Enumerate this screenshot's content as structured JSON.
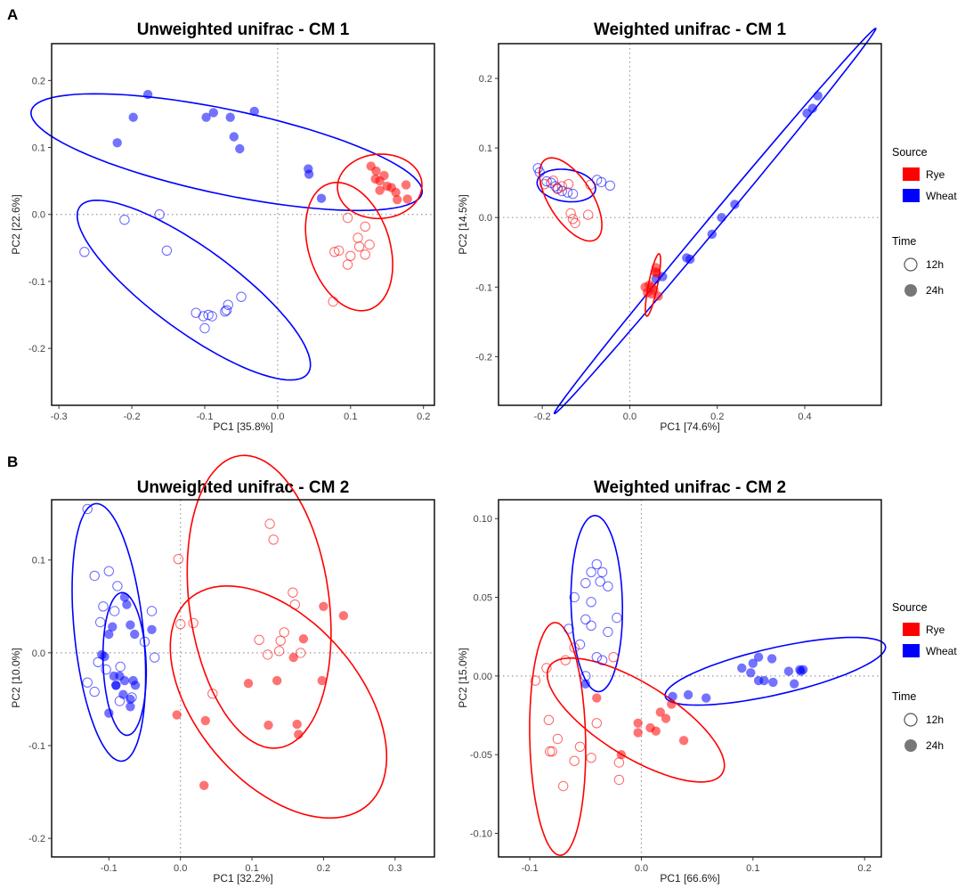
{
  "panel_labels": [
    "A",
    "B"
  ],
  "colors": {
    "rye": "#ff0000",
    "wheat": "#0000ff",
    "zero_line": "#999999"
  },
  "legend": {
    "source_title": "Source",
    "source_items": [
      "Rye",
      "Wheat"
    ],
    "time_title": "Time",
    "time_items": [
      "12h",
      "24h"
    ]
  },
  "chart_data": [
    {
      "type": "scatter",
      "title": "Unweighted unifrac - CM 1",
      "xlabel": "PC1 [35.8%]",
      "ylabel": "PC2 [22.6%]",
      "xlim": [
        -0.31,
        0.215
      ],
      "ylim": [
        -0.285,
        0.255
      ],
      "xticks": [
        -0.3,
        -0.2,
        -0.1,
        0.0,
        0.1,
        0.2
      ],
      "xtick_labels": [
        "-0.3",
        "-0.2",
        "-0.1",
        "0.0",
        "0.1",
        "0.2"
      ],
      "yticks": [
        -0.2,
        -0.1,
        0.0,
        0.1,
        0.2
      ],
      "ytick_labels": [
        "-0.2",
        "-0.1",
        "0.0",
        "0.1",
        "0.2"
      ],
      "ellipses": [
        {
          "source": "Wheat",
          "cx": -0.07,
          "cy": 0.093,
          "rx": 0.275,
          "ry": 0.063,
          "angle_deg": -13
        },
        {
          "source": "Wheat",
          "cx": -0.115,
          "cy": -0.113,
          "rx": 0.2,
          "ry": 0.06,
          "angle_deg": -39
        },
        {
          "source": "Rye",
          "cx": 0.14,
          "cy": 0.042,
          "rx": 0.058,
          "ry": 0.048,
          "angle_deg": 5
        },
        {
          "source": "Rye",
          "cx": 0.098,
          "cy": -0.048,
          "rx": 0.056,
          "ry": 0.098,
          "angle_deg": 15
        }
      ],
      "series": [
        {
          "name": "Wheat 24h",
          "source": "Wheat",
          "time": "24h",
          "x": [
            -0.22,
            -0.198,
            -0.178,
            -0.098,
            -0.088,
            -0.065,
            -0.06,
            -0.052,
            -0.032,
            0.042,
            0.043,
            0.06
          ],
          "y": [
            0.107,
            0.145,
            0.179,
            0.145,
            0.152,
            0.145,
            0.116,
            0.098,
            0.154,
            0.068,
            0.06,
            0.024
          ]
        },
        {
          "name": "Wheat 12h",
          "source": "Wheat",
          "time": "12h",
          "x": [
            -0.265,
            -0.21,
            -0.162,
            -0.152,
            -0.112,
            -0.102,
            -0.1,
            -0.095,
            -0.09,
            -0.072,
            -0.07,
            -0.068,
            -0.05
          ],
          "y": [
            -0.056,
            -0.008,
            0.0,
            -0.054,
            -0.147,
            -0.152,
            -0.17,
            -0.15,
            -0.152,
            -0.145,
            -0.143,
            -0.135,
            -0.123
          ]
        },
        {
          "name": "Rye 24h",
          "source": "Rye",
          "time": "24h",
          "x": [
            0.128,
            0.135,
            0.14,
            0.146,
            0.15,
            0.156,
            0.162,
            0.164,
            0.176,
            0.178,
            0.14,
            0.134
          ],
          "y": [
            0.072,
            0.065,
            0.05,
            0.058,
            0.042,
            0.04,
            0.033,
            0.022,
            0.044,
            0.023,
            0.036,
            0.053
          ]
        },
        {
          "name": "Rye 12h",
          "source": "Rye",
          "time": "12h",
          "x": [
            0.078,
            0.084,
            0.096,
            0.1,
            0.11,
            0.12,
            0.12,
            0.126,
            0.096,
            0.112,
            0.076
          ],
          "y": [
            -0.056,
            -0.054,
            -0.075,
            -0.062,
            -0.035,
            -0.06,
            -0.018,
            -0.045,
            -0.005,
            -0.048,
            -0.13
          ]
        }
      ]
    },
    {
      "type": "scatter",
      "title": "Weighted unifrac - CM 1",
      "xlabel": "PC1 [74.6%]",
      "ylabel": "PC2 [14.5%]",
      "xlim": [
        -0.3,
        0.575
      ],
      "ylim": [
        -0.27,
        0.25
      ],
      "xticks": [
        -0.2,
        0.0,
        0.2,
        0.4
      ],
      "xtick_labels": [
        "-0.2",
        "0.0",
        "0.2",
        "0.4"
      ],
      "yticks": [
        -0.2,
        -0.1,
        0.0,
        0.1,
        0.2
      ],
      "ytick_labels": [
        "-0.2",
        "-0.1",
        "0.0",
        "0.1",
        "0.2"
      ],
      "ellipses": [
        {
          "source": "Wheat",
          "cx": 0.195,
          "cy": -0.005,
          "rx": 0.46,
          "ry": 0.011,
          "angle_deg": 37
        },
        {
          "source": "Wheat",
          "cx": -0.145,
          "cy": 0.046,
          "rx": 0.067,
          "ry": 0.023,
          "angle_deg": -4
        },
        {
          "source": "Rye",
          "cx": -0.135,
          "cy": 0.026,
          "rx": 0.084,
          "ry": 0.04,
          "angle_deg": -37
        },
        {
          "source": "Rye",
          "cx": 0.053,
          "cy": -0.097,
          "rx": 0.047,
          "ry": 0.01,
          "angle_deg": 72
        }
      ],
      "series": [
        {
          "name": "Wheat 24h",
          "source": "Wheat",
          "time": "24h",
          "x": [
            0.06,
            0.075,
            0.13,
            0.138,
            0.188,
            0.21,
            0.24,
            0.405,
            0.418,
            0.43
          ],
          "y": [
            -0.088,
            -0.085,
            -0.058,
            -0.06,
            -0.024,
            0.0,
            0.019,
            0.15,
            0.157,
            0.175
          ]
        },
        {
          "name": "Wheat 12h",
          "source": "Wheat",
          "time": "12h",
          "x": [
            -0.21,
            -0.206,
            -0.19,
            -0.18,
            -0.17,
            -0.165,
            -0.155,
            -0.142,
            -0.13,
            -0.075,
            -0.065,
            -0.045
          ],
          "y": [
            0.071,
            0.065,
            0.052,
            0.05,
            0.045,
            0.042,
            0.038,
            0.036,
            0.034,
            0.054,
            0.051,
            0.046
          ]
        },
        {
          "name": "Rye 24h",
          "source": "Rye",
          "time": "24h",
          "x": [
            0.035,
            0.04,
            0.045,
            0.05,
            0.055,
            0.06,
            0.062,
            0.065,
            0.05,
            0.058
          ],
          "y": [
            -0.1,
            -0.108,
            -0.097,
            -0.11,
            -0.104,
            -0.072,
            -0.08,
            -0.113,
            -0.1,
            -0.078
          ]
        },
        {
          "name": "Rye 12h",
          "source": "Rye",
          "time": "12h",
          "x": [
            -0.195,
            -0.175,
            -0.165,
            -0.155,
            -0.14,
            -0.135,
            -0.13,
            -0.125,
            -0.09,
            -0.095
          ],
          "y": [
            0.048,
            0.053,
            0.041,
            0.045,
            0.048,
            0.006,
            -0.002,
            -0.008,
            0.047,
            0.004
          ]
        }
      ]
    },
    {
      "type": "scatter",
      "title": "Unweighted unifrac - CM 2",
      "xlabel": "PC1 [32.2%]",
      "ylabel": "PC2 [10.0%]",
      "xlim": [
        -0.18,
        0.355
      ],
      "ylim": [
        -0.22,
        0.165
      ],
      "xticks": [
        -0.1,
        0.0,
        0.1,
        0.2,
        0.3
      ],
      "xtick_labels": [
        "-0.1",
        "0.0",
        "0.1",
        "0.2",
        "0.3"
      ],
      "yticks": [
        -0.2,
        -0.1,
        0.0,
        0.1
      ],
      "ytick_labels": [
        "-0.2",
        "-0.1",
        "0.0",
        "0.1"
      ],
      "ellipses": [
        {
          "source": "Wheat",
          "cx": -0.1,
          "cy": 0.022,
          "rx": 0.14,
          "ry": 0.048,
          "angle_deg": -82
        },
        {
          "source": "Wheat",
          "cx": -0.078,
          "cy": -0.012,
          "rx": 0.077,
          "ry": 0.03,
          "angle_deg": -87
        },
        {
          "source": "Rye",
          "cx": 0.11,
          "cy": 0.055,
          "rx": 0.16,
          "ry": 0.097,
          "angle_deg": -78
        },
        {
          "source": "Rye",
          "cx": 0.137,
          "cy": -0.053,
          "rx": 0.17,
          "ry": 0.098,
          "angle_deg": -34
        }
      ],
      "series": [
        {
          "name": "Wheat 24h",
          "source": "Wheat",
          "time": "24h",
          "x": [
            -0.078,
            -0.075,
            -0.095,
            -0.1,
            -0.07,
            -0.064,
            -0.11,
            -0.106,
            -0.093,
            -0.078,
            -0.066,
            -0.063,
            -0.085,
            -0.1,
            -0.09,
            -0.08,
            -0.07,
            -0.09,
            -0.07,
            -0.04
          ],
          "y": [
            0.06,
            0.052,
            0.028,
            0.02,
            0.03,
            0.02,
            -0.002,
            -0.004,
            -0.025,
            -0.03,
            -0.03,
            -0.035,
            -0.025,
            -0.065,
            -0.035,
            -0.045,
            -0.058,
            -0.035,
            -0.05,
            0.025
          ]
        },
        {
          "name": "Wheat 12h",
          "source": "Wheat",
          "time": "12h",
          "x": [
            -0.13,
            -0.12,
            -0.1,
            -0.088,
            -0.108,
            -0.092,
            -0.13,
            -0.115,
            -0.104,
            -0.084,
            -0.12,
            -0.068,
            -0.04,
            -0.036,
            -0.05,
            -0.112,
            -0.085
          ],
          "y": [
            0.155,
            0.083,
            0.088,
            0.072,
            0.05,
            0.045,
            -0.032,
            -0.01,
            -0.018,
            -0.015,
            -0.042,
            -0.048,
            0.045,
            -0.005,
            0.012,
            0.033,
            -0.052
          ]
        },
        {
          "name": "Rye 24h",
          "source": "Rye",
          "time": "24h",
          "x": [
            0.2,
            0.228,
            0.172,
            0.158,
            0.135,
            0.095,
            0.035,
            0.163,
            0.165,
            0.123,
            0.198,
            -0.005,
            0.033
          ],
          "y": [
            0.05,
            0.04,
            0.015,
            -0.005,
            -0.03,
            -0.033,
            -0.073,
            -0.077,
            -0.088,
            -0.078,
            -0.03,
            -0.067,
            -0.143
          ]
        },
        {
          "name": "Rye 12h",
          "source": "Rye",
          "time": "12h",
          "x": [
            -0.003,
            0.125,
            0.13,
            0.157,
            0.16,
            0.145,
            0.11,
            0.14,
            0.168,
            0.122,
            0.138,
            0.0,
            0.018,
            0.045
          ],
          "y": [
            0.101,
            0.139,
            0.122,
            0.065,
            0.052,
            0.022,
            0.014,
            0.013,
            0.0,
            -0.002,
            0.002,
            0.031,
            0.032,
            -0.044
          ]
        }
      ]
    },
    {
      "type": "scatter",
      "title": "Weighted unifrac - CM 2",
      "xlabel": "PC1 [66.6%]",
      "ylabel": "PC2 [15.0%]",
      "xlim": [
        -0.128,
        0.215
      ],
      "ylim": [
        -0.115,
        0.112
      ],
      "xticks": [
        -0.1,
        0.0,
        0.1,
        0.2
      ],
      "xtick_labels": [
        "-0.1",
        "0.0",
        "0.1",
        "0.2"
      ],
      "yticks": [
        -0.1,
        -0.05,
        0.0,
        0.05,
        0.1
      ],
      "ytick_labels": [
        "-0.10",
        "-0.05",
        "0.00",
        "0.05",
        "0.10"
      ],
      "ellipses": [
        {
          "source": "Wheat",
          "cx": -0.04,
          "cy": 0.046,
          "rx": 0.056,
          "ry": 0.023,
          "angle_deg": -88
        },
        {
          "source": "Wheat",
          "cx": 0.12,
          "cy": 0.003,
          "rx": 0.1,
          "ry": 0.015,
          "angle_deg": 9
        },
        {
          "source": "Rye",
          "cx": -0.075,
          "cy": -0.04,
          "rx": 0.074,
          "ry": 0.025,
          "angle_deg": -88
        },
        {
          "source": "Rye",
          "cx": -0.005,
          "cy": -0.028,
          "rx": 0.085,
          "ry": 0.025,
          "angle_deg": -22
        }
      ],
      "series": [
        {
          "name": "Wheat 24h",
          "source": "Wheat",
          "time": "24h",
          "x": [
            0.028,
            0.042,
            0.058,
            0.09,
            0.098,
            0.1,
            0.105,
            0.105,
            0.117,
            0.118,
            0.132,
            0.137,
            0.142,
            0.143,
            0.11,
            0.145,
            -0.05
          ],
          "y": [
            -0.013,
            -0.012,
            -0.014,
            0.005,
            0.002,
            0.008,
            0.012,
            -0.003,
            0.011,
            -0.004,
            0.003,
            -0.005,
            0.004,
            0.003,
            -0.003,
            0.004,
            -0.005
          ]
        },
        {
          "name": "Wheat 12h",
          "source": "Wheat",
          "time": "12h",
          "x": [
            -0.04,
            -0.045,
            -0.035,
            -0.05,
            -0.037,
            -0.03,
            -0.06,
            -0.05,
            -0.045,
            -0.045,
            -0.03,
            -0.022,
            -0.04,
            -0.035,
            -0.05,
            -0.065,
            -0.055
          ],
          "y": [
            0.071,
            0.066,
            0.066,
            0.059,
            0.06,
            0.057,
            0.05,
            0.036,
            0.047,
            0.032,
            0.028,
            0.037,
            0.012,
            0.01,
            0.0,
            0.03,
            0.02
          ]
        },
        {
          "name": "Rye 24h",
          "source": "Rye",
          "time": "24h",
          "x": [
            -0.003,
            -0.003,
            0.008,
            0.013,
            0.017,
            0.022,
            0.027,
            0.038,
            -0.018,
            -0.04
          ],
          "y": [
            -0.03,
            -0.036,
            -0.033,
            -0.035,
            -0.023,
            -0.027,
            -0.018,
            -0.041,
            -0.05,
            -0.014
          ]
        },
        {
          "name": "Rye 12h",
          "source": "Rye",
          "time": "12h",
          "x": [
            -0.095,
            -0.085,
            -0.08,
            -0.075,
            -0.07,
            -0.06,
            -0.055,
            -0.083,
            -0.082,
            -0.068,
            -0.06,
            -0.025,
            -0.04,
            -0.045,
            -0.02,
            -0.02
          ],
          "y": [
            -0.003,
            0.005,
            -0.048,
            -0.04,
            -0.07,
            -0.054,
            -0.045,
            -0.028,
            -0.048,
            0.01,
            0.018,
            0.012,
            -0.03,
            -0.052,
            -0.066,
            -0.055
          ]
        }
      ]
    }
  ]
}
